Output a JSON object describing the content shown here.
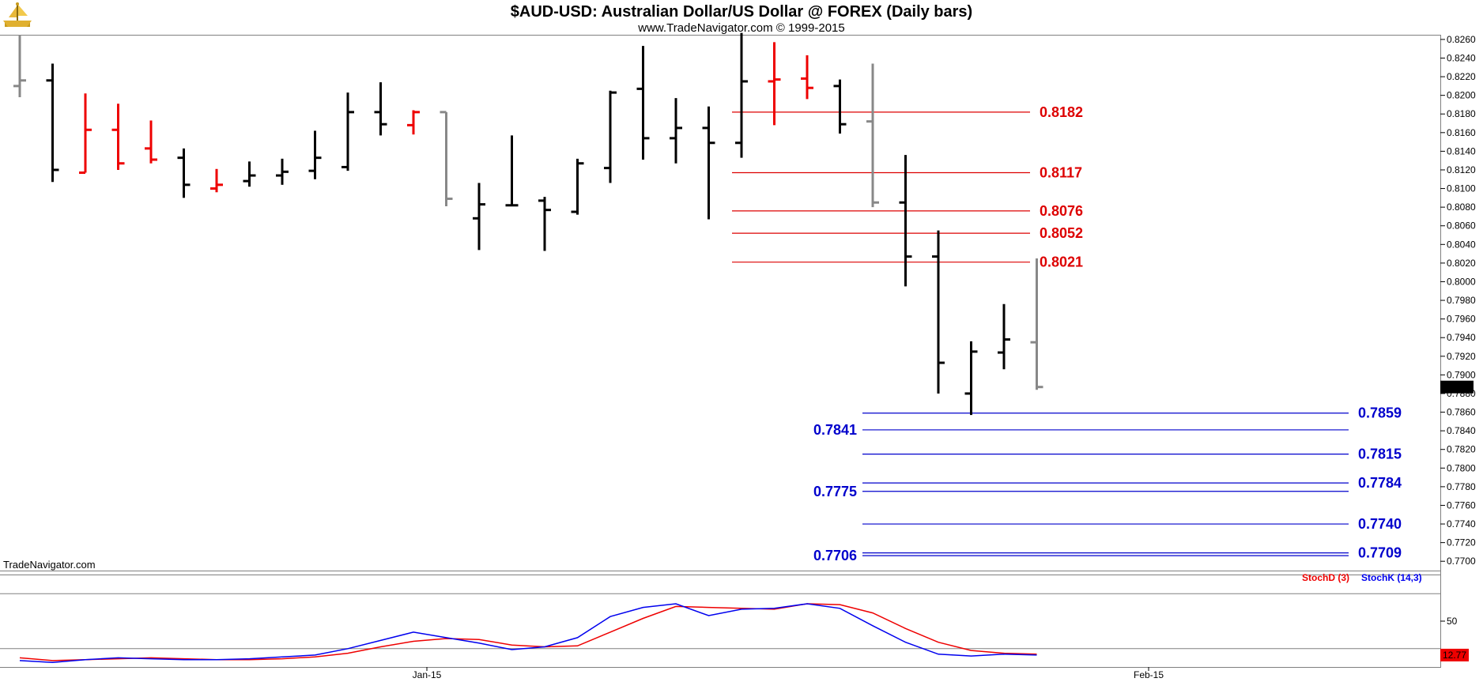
{
  "header": {
    "title": "$AUD-USD:  Australian Dollar/US Dollar @ FOREX  (Daily bars)",
    "subtitle": "www.TradeNavigator.com © 1999-2015",
    "logo_icon": "trade-navigator-ship-logo-icon"
  },
  "watermark": "TradeNavigator.com",
  "colors": {
    "up": "#000000",
    "down": "#ee0000",
    "neutral": "#888888",
    "resistance": "#dd0000",
    "support": "#0000cc",
    "stoch_d": "#ee0000",
    "stoch_k": "#0000ee"
  },
  "chart_data": [
    {
      "type": "ohlc",
      "title": "$AUD-USD:  Australian Dollar/US Dollar @ FOREX  (Daily bars)",
      "ylim": [
        0.769,
        0.8265
      ],
      "y_ticks": [
        "0.7700",
        "0.7720",
        "0.7740",
        "0.7760",
        "0.7780",
        "0.7800",
        "0.7820",
        "0.7840",
        "0.7860",
        "0.7880",
        "0.7900",
        "0.7920",
        "0.7940",
        "0.7960",
        "0.7980",
        "0.8000",
        "0.8020",
        "0.8040",
        "0.8060",
        "0.8080",
        "0.8100",
        "0.8120",
        "0.8140",
        "0.8160",
        "0.8180",
        "0.8200",
        "0.8220",
        "0.8240",
        "0.8260"
      ],
      "x_labels": [
        {
          "label": "Jan-15",
          "bar": 12
        },
        {
          "label": "Feb-15",
          "bar": 34
        }
      ],
      "last_price": "0.7887",
      "bars": [
        {
          "o": 0.821,
          "h": 0.8265,
          "l": 0.8198,
          "c": 0.8216,
          "col": "neutral"
        },
        {
          "o": 0.8216,
          "h": 0.8234,
          "l": 0.8107,
          "c": 0.812,
          "col": "up"
        },
        {
          "o": 0.8117,
          "h": 0.8202,
          "l": 0.8117,
          "c": 0.8163,
          "col": "down"
        },
        {
          "o": 0.8163,
          "h": 0.8191,
          "l": 0.812,
          "c": 0.8127,
          "col": "down"
        },
        {
          "o": 0.8143,
          "h": 0.8173,
          "l": 0.8127,
          "c": 0.8131,
          "col": "down"
        },
        {
          "o": 0.8133,
          "h": 0.8143,
          "l": 0.809,
          "c": 0.8104,
          "col": "up"
        },
        {
          "o": 0.81,
          "h": 0.8121,
          "l": 0.8096,
          "c": 0.8104,
          "col": "down"
        },
        {
          "o": 0.8108,
          "h": 0.8129,
          "l": 0.8102,
          "c": 0.8114,
          "col": "up"
        },
        {
          "o": 0.8114,
          "h": 0.8132,
          "l": 0.8104,
          "c": 0.8118,
          "col": "up"
        },
        {
          "o": 0.8119,
          "h": 0.8162,
          "l": 0.811,
          "c": 0.8133,
          "col": "up"
        },
        {
          "o": 0.8123,
          "h": 0.8203,
          "l": 0.8119,
          "c": 0.8182,
          "col": "up"
        },
        {
          "o": 0.8182,
          "h": 0.8214,
          "l": 0.8157,
          "c": 0.8169,
          "col": "up"
        },
        {
          "o": 0.8168,
          "h": 0.8184,
          "l": 0.8158,
          "c": 0.8182,
          "col": "down"
        },
        {
          "o": 0.8182,
          "h": 0.8182,
          "l": 0.8081,
          "c": 0.8089,
          "col": "neutral"
        },
        {
          "o": 0.8068,
          "h": 0.8106,
          "l": 0.8034,
          "c": 0.8083,
          "col": "up"
        },
        {
          "o": 0.8082,
          "h": 0.8157,
          "l": 0.8081,
          "c": 0.8082,
          "col": "up"
        },
        {
          "o": 0.8087,
          "h": 0.8091,
          "l": 0.8033,
          "c": 0.8077,
          "col": "up"
        },
        {
          "o": 0.8075,
          "h": 0.8132,
          "l": 0.8072,
          "c": 0.8127,
          "col": "up"
        },
        {
          "o": 0.8122,
          "h": 0.8205,
          "l": 0.8106,
          "c": 0.8203,
          "col": "up"
        },
        {
          "o": 0.8207,
          "h": 0.8253,
          "l": 0.8131,
          "c": 0.8154,
          "col": "up"
        },
        {
          "o": 0.8154,
          "h": 0.8197,
          "l": 0.8127,
          "c": 0.8165,
          "col": "up"
        },
        {
          "o": 0.8165,
          "h": 0.8188,
          "l": 0.8067,
          "c": 0.8149,
          "col": "up"
        },
        {
          "o": 0.8149,
          "h": 0.8267,
          "l": 0.8133,
          "c": 0.8215,
          "col": "up"
        },
        {
          "o": 0.8215,
          "h": 0.8257,
          "l": 0.8168,
          "c": 0.8217,
          "col": "down"
        },
        {
          "o": 0.8218,
          "h": 0.8243,
          "l": 0.8196,
          "c": 0.8208,
          "col": "down"
        },
        {
          "o": 0.821,
          "h": 0.8217,
          "l": 0.8159,
          "c": 0.8169,
          "col": "up"
        },
        {
          "o": 0.8172,
          "h": 0.8234,
          "l": 0.808,
          "c": 0.8085,
          "col": "neutral"
        },
        {
          "o": 0.8085,
          "h": 0.8136,
          "l": 0.7995,
          "c": 0.8027,
          "col": "up"
        },
        {
          "o": 0.8027,
          "h": 0.8055,
          "l": 0.788,
          "c": 0.7913,
          "col": "up"
        },
        {
          "o": 0.788,
          "h": 0.7936,
          "l": 0.7857,
          "c": 0.7925,
          "col": "up"
        },
        {
          "o": 0.7924,
          "h": 0.7976,
          "l": 0.7906,
          "c": 0.7938,
          "col": "up"
        },
        {
          "o": 0.7935,
          "h": 0.8025,
          "l": 0.7884,
          "c": 0.7887,
          "col": "neutral"
        }
      ],
      "levels": [
        {
          "value": 0.8182,
          "label": "0.8182",
          "kind": "resistance",
          "side": "right"
        },
        {
          "value": 0.8117,
          "label": "0.8117",
          "kind": "resistance",
          "side": "right"
        },
        {
          "value": 0.8076,
          "label": "0.8076",
          "kind": "resistance",
          "side": "right"
        },
        {
          "value": 0.8052,
          "label": "0.8052",
          "kind": "resistance",
          "side": "right"
        },
        {
          "value": 0.8021,
          "label": "0.8021",
          "kind": "resistance",
          "side": "right"
        },
        {
          "value": 0.7859,
          "label": "0.7859",
          "kind": "support",
          "side": "right"
        },
        {
          "value": 0.7841,
          "label": "0.7841",
          "kind": "support",
          "side": "left"
        },
        {
          "value": 0.7815,
          "label": "0.7815",
          "kind": "support",
          "side": "right"
        },
        {
          "value": 0.7784,
          "label": "0.7784",
          "kind": "support",
          "side": "right"
        },
        {
          "value": 0.7775,
          "label": "0.7775",
          "kind": "support",
          "side": "left"
        },
        {
          "value": 0.774,
          "label": "0.7740",
          "kind": "support",
          "side": "right"
        },
        {
          "value": 0.7709,
          "label": "0.7709",
          "kind": "support",
          "side": "right"
        },
        {
          "value": 0.7706,
          "label": "0.7706",
          "kind": "support",
          "side": "left"
        }
      ]
    },
    {
      "type": "line",
      "title": "",
      "ylim": [
        0,
        100
      ],
      "ref_lines": [
        80,
        20
      ],
      "y_ticks": [
        "50"
      ],
      "last_value_label": "12.77",
      "series": [
        {
          "name": "StochD (3)",
          "color_key": "stoch_d",
          "values": [
            10,
            7,
            8,
            9,
            10,
            9,
            8,
            8,
            9,
            11,
            15,
            22,
            28,
            31,
            30,
            24,
            22,
            23,
            38,
            53,
            66,
            65,
            64,
            63,
            69,
            68,
            59,
            42,
            27,
            18,
            15,
            14
          ]
        },
        {
          "name": "StochK (14,3)",
          "color_key": "stoch_k",
          "values": [
            7,
            5,
            8,
            10,
            9,
            8,
            8,
            9,
            11,
            13,
            20,
            29,
            38,
            32,
            26,
            19,
            22,
            32,
            55,
            65,
            69,
            56,
            63,
            64,
            69,
            64,
            45,
            27,
            14,
            12,
            14,
            13
          ]
        }
      ]
    }
  ]
}
